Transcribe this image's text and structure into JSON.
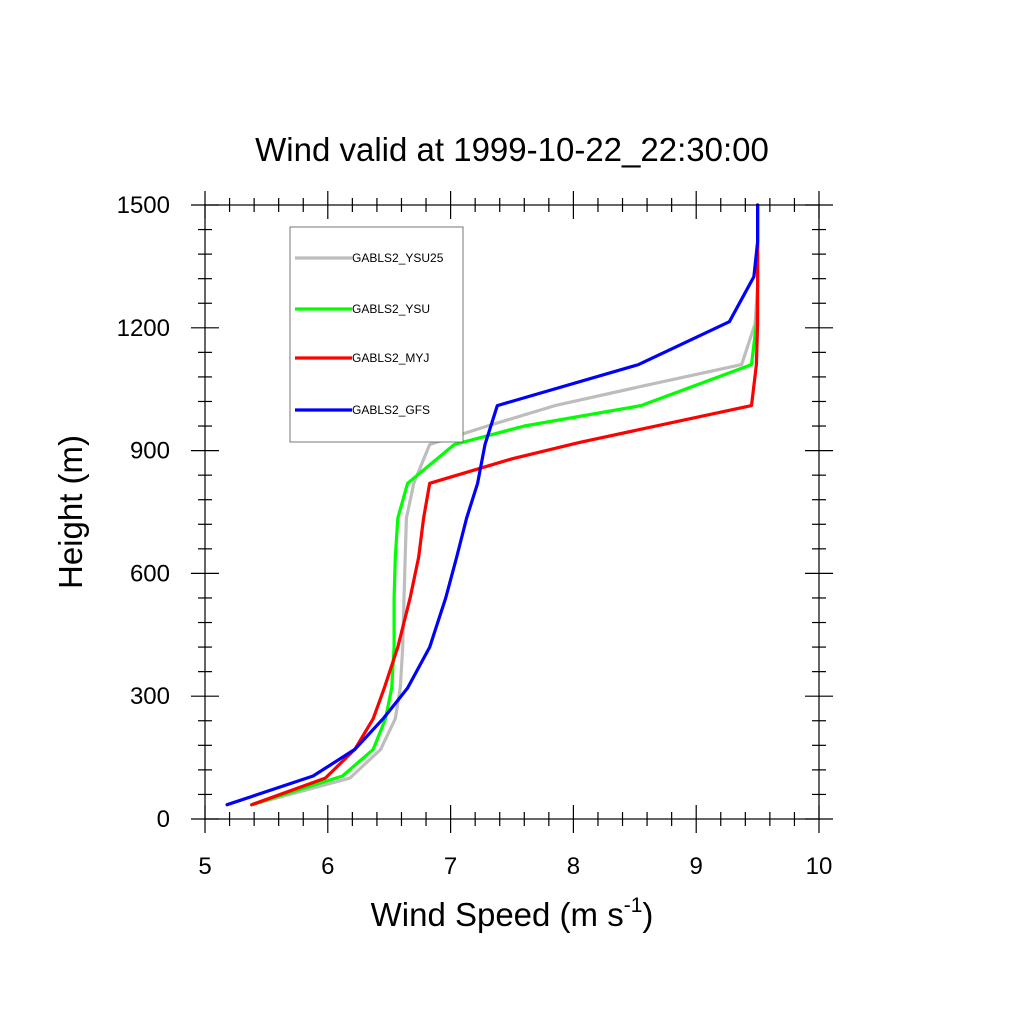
{
  "chart_data": {
    "type": "line",
    "title": "Wind valid at 1999-10-22_22:30:00",
    "xlabel_main": "Wind Speed (m s",
    "xlabel_sup": "-1",
    "xlabel_close": ")",
    "ylabel": "Height (m)",
    "xlim": [
      5,
      10
    ],
    "ylim": [
      0,
      1500
    ],
    "x_major_ticks": [
      5,
      6,
      7,
      8,
      9,
      10
    ],
    "x_tick_labels": [
      "5",
      "6",
      "7",
      "8",
      "9",
      "10"
    ],
    "x_minor_step": 0.2,
    "y_major_ticks": [
      0,
      300,
      600,
      900,
      1200,
      1500
    ],
    "y_tick_labels": [
      "0",
      "300",
      "600",
      "900",
      "1200",
      "1500"
    ],
    "y_minor_step": 60,
    "legend_position": "top-left",
    "grid": false,
    "series": [
      {
        "name": "GABLS2_YSU25",
        "color": "#bdbdbd",
        "points": [
          [
            5.38,
            35
          ],
          [
            6.18,
            100
          ],
          [
            6.43,
            170
          ],
          [
            6.55,
            245
          ],
          [
            6.59,
            320
          ],
          [
            6.61,
            420
          ],
          [
            6.62,
            530
          ],
          [
            6.63,
            640
          ],
          [
            6.64,
            735
          ],
          [
            6.7,
            820
          ],
          [
            6.83,
            915
          ],
          [
            7.3,
            960
          ],
          [
            7.85,
            1010
          ],
          [
            8.6,
            1060
          ],
          [
            9.37,
            1110
          ],
          [
            9.48,
            1210
          ],
          [
            9.5,
            1300
          ],
          [
            9.5,
            1500
          ]
        ]
      },
      {
        "name": "GABLS2_YSU",
        "color": "#00ff00",
        "points": [
          [
            5.38,
            35
          ],
          [
            6.12,
            105
          ],
          [
            6.37,
            170
          ],
          [
            6.47,
            245
          ],
          [
            6.52,
            320
          ],
          [
            6.54,
            420
          ],
          [
            6.54,
            540
          ],
          [
            6.55,
            640
          ],
          [
            6.57,
            735
          ],
          [
            6.65,
            820
          ],
          [
            7.03,
            915
          ],
          [
            7.6,
            960
          ],
          [
            8.55,
            1010
          ],
          [
            9.45,
            1110
          ],
          [
            9.49,
            1210
          ],
          [
            9.5,
            1300
          ],
          [
            9.5,
            1500
          ]
        ]
      },
      {
        "name": "GABLS2_MYJ",
        "color": "#ff0000",
        "points": [
          [
            5.38,
            35
          ],
          [
            5.98,
            100
          ],
          [
            6.22,
            170
          ],
          [
            6.37,
            245
          ],
          [
            6.46,
            320
          ],
          [
            6.57,
            420
          ],
          [
            6.67,
            540
          ],
          [
            6.74,
            640
          ],
          [
            6.78,
            735
          ],
          [
            6.83,
            820
          ],
          [
            7.5,
            880
          ],
          [
            8.05,
            920
          ],
          [
            9.45,
            1010
          ],
          [
            9.49,
            1110
          ],
          [
            9.5,
            1210
          ],
          [
            9.5,
            1300
          ],
          [
            9.5,
            1500
          ]
        ]
      },
      {
        "name": "GABLS2_GFS",
        "color": "#0000ff",
        "points": [
          [
            5.18,
            35
          ],
          [
            5.88,
            105
          ],
          [
            6.22,
            170
          ],
          [
            6.45,
            245
          ],
          [
            6.65,
            320
          ],
          [
            6.83,
            420
          ],
          [
            6.96,
            540
          ],
          [
            7.05,
            640
          ],
          [
            7.13,
            735
          ],
          [
            7.22,
            820
          ],
          [
            7.28,
            915
          ],
          [
            7.38,
            1010
          ],
          [
            8.53,
            1110
          ],
          [
            9.27,
            1215
          ],
          [
            9.47,
            1325
          ],
          [
            9.5,
            1410
          ],
          [
            9.5,
            1500
          ]
        ]
      }
    ]
  }
}
